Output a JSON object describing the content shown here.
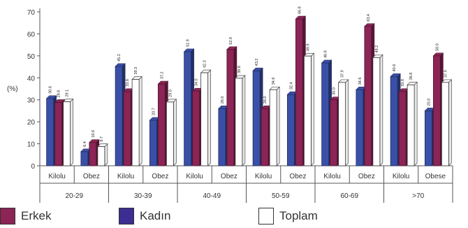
{
  "chart_data": {
    "type": "bar",
    "ylabel": "(%)",
    "ylim": [
      0,
      70
    ],
    "yticks": [
      "0",
      "10",
      "20",
      "30",
      "40",
      "50",
      "60",
      "70"
    ],
    "groups": [
      "20-29",
      "30-39",
      "40-49",
      "50-59",
      "60-69",
      ">70"
    ],
    "categories": [
      "Kilolu",
      "Obez",
      "Kilolu",
      "Obez",
      "Kilolu",
      "Obez",
      "Kilolu",
      "Obez",
      "Kilolu",
      "Obez",
      "Kilolu",
      "Obese"
    ],
    "series": [
      {
        "name": "Kadın",
        "values": [
          30.6,
          6.4,
          45.2,
          20.7,
          51.9,
          26.0,
          43.2,
          32.4,
          46.8,
          34.6,
          40.6,
          25.0
        ]
      },
      {
        "name": "Erkek",
        "values": [
          28.8,
          10.6,
          33.8,
          37.2,
          34.0,
          52.9,
          26.0,
          66.8,
          30.0,
          63.4,
          33.8,
          50.0
        ]
      },
      {
        "name": "Toplam",
        "values": [
          29.1,
          8.7,
          39.3,
          29.0,
          42.3,
          39.8,
          34.6,
          49.9,
          37.9,
          49.2,
          36.8,
          37.9
        ]
      }
    ],
    "data_labels": [
      [
        "30.6",
        "28.8",
        "29.1"
      ],
      [
        "6.4",
        "10.6",
        "8.7"
      ],
      [
        "45.2",
        "33.8",
        "39.3"
      ],
      [
        "20.7",
        "37.2",
        "29.0"
      ],
      [
        "51.9",
        "34.0",
        "42.3"
      ],
      [
        "26.0",
        "52.9",
        "39.8"
      ],
      [
        "43.2",
        "26.0",
        "34.6"
      ],
      [
        "32.4",
        "66.8",
        "49.9"
      ],
      [
        "46.8",
        "30.0",
        "37.9"
      ],
      [
        "34.6",
        "63.4",
        "49.2"
      ],
      [
        "40.6",
        "33.8",
        "36.8"
      ],
      [
        "25.0",
        "50.0",
        "37.9"
      ]
    ],
    "colors": {
      "Kadın": "#3a50a8",
      "Erkek": "#8c2456",
      "Toplam": "#ffffff"
    },
    "grid": false,
    "legend_position": "bottom",
    "style": "3d-bar"
  },
  "legend": [
    {
      "label": "Erkek",
      "color": "#8c2456"
    },
    {
      "label": "Kadın",
      "color": "#3c2d92"
    },
    {
      "label": "Toplam",
      "color": "#ffffff"
    }
  ]
}
